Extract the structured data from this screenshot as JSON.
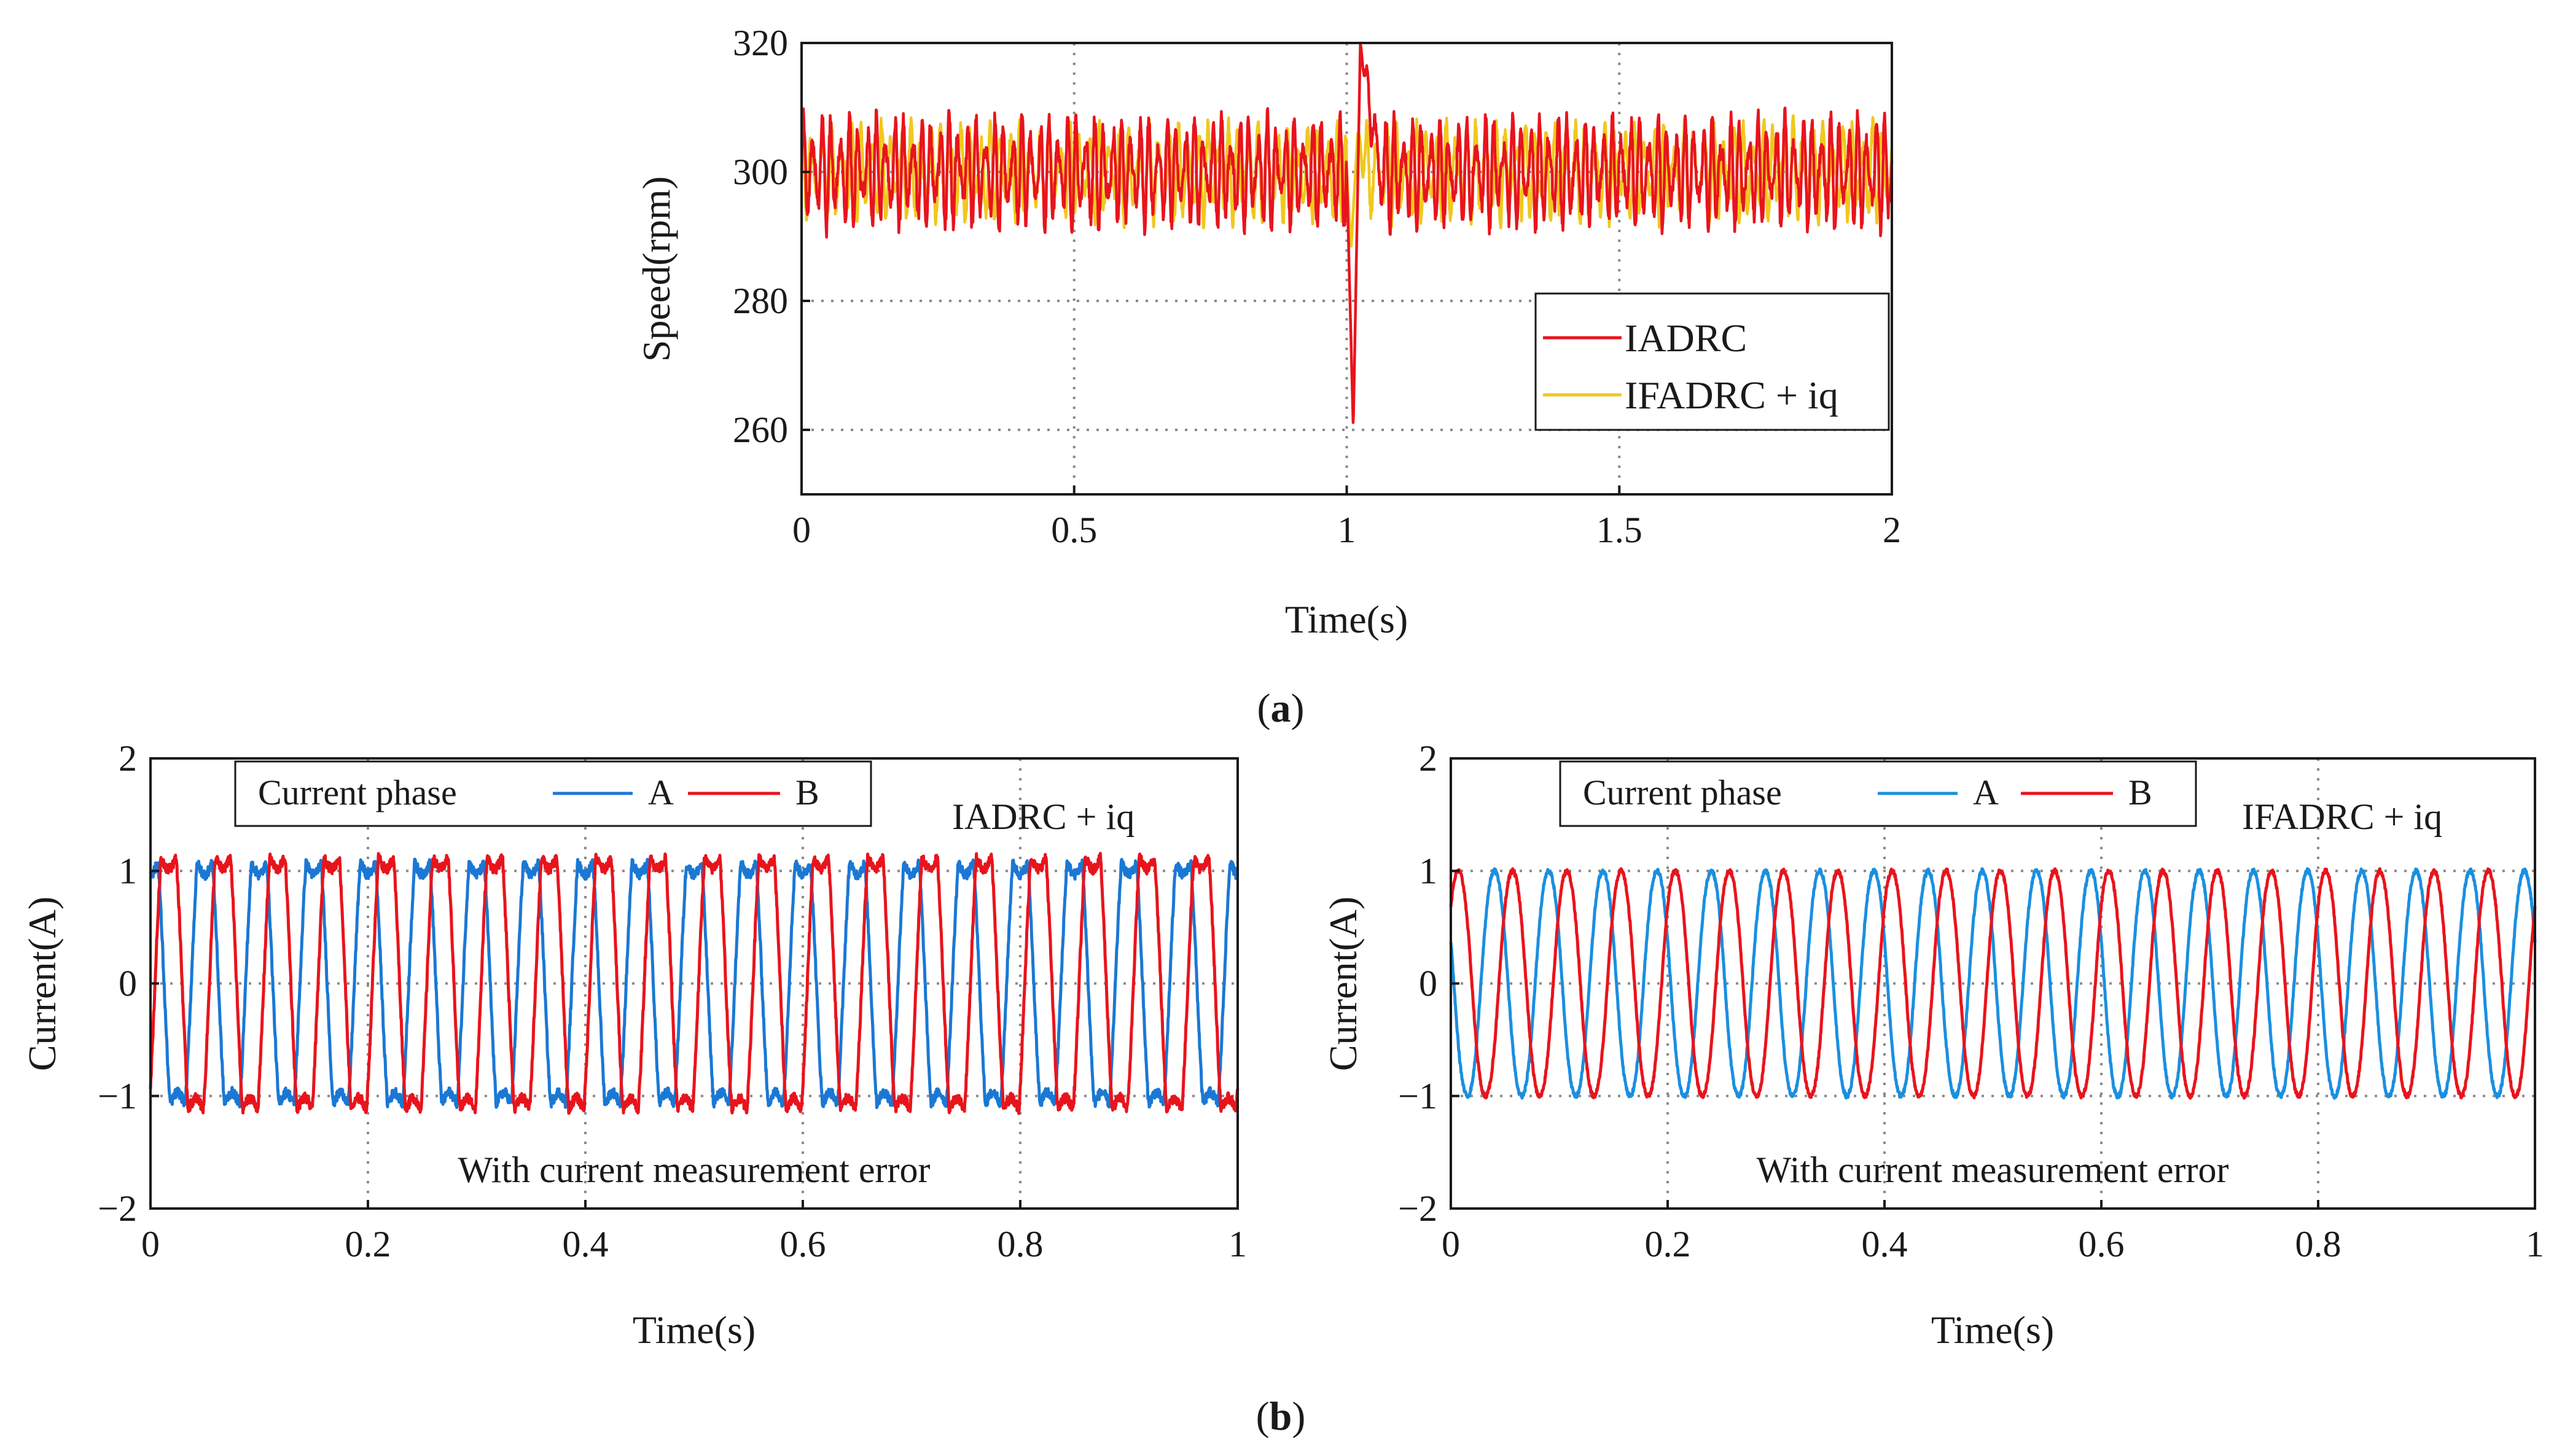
{
  "chart_data": [
    {
      "id": "a",
      "type": "line",
      "panel_label_letter": "a",
      "xlabel": "Time(s)",
      "ylabel": "Speed(rpm)",
      "xlim": [
        0,
        2
      ],
      "ylim": [
        250,
        320
      ],
      "xticks": [
        0,
        0.5,
        1,
        1.5,
        2
      ],
      "xtick_labels": [
        "0",
        "0.5",
        "1",
        "1.5",
        "2"
      ],
      "yticks": [
        260,
        280,
        300,
        320
      ],
      "ytick_labels": [
        "260",
        "280",
        "300",
        "320"
      ],
      "grid": true,
      "legend_position": "lower-right",
      "series": [
        {
          "name": "IADRC",
          "color": "#e8141c",
          "sampling": "oscillation about 300 rpm, amplitude ~8 rpm, ~60 Hz; load disturbance at t=1.0 s dropping to 260 then overshooting to 320 before recovering",
          "baseline": 300,
          "osc_amplitude": 8,
          "osc_frequency_hz": 60,
          "disturbance": {
            "t": 1.0,
            "min": 260,
            "t_min": 1.012,
            "max": 320,
            "t_max": 1.025,
            "t_recover": 1.06
          }
        },
        {
          "name": "IFADRC + iq",
          "color": "#f0c81e",
          "sampling": "oscillation about 300 rpm, amplitude ~7 rpm; small dip to ~288 at t=1.0 s with quick recovery",
          "baseline": 300,
          "osc_amplitude": 7,
          "osc_frequency_hz": 55,
          "disturbance": {
            "t": 1.0,
            "min": 288,
            "t_min": 1.008,
            "max": 306,
            "t_max": 1.02,
            "t_recover": 1.04
          }
        }
      ]
    },
    {
      "id": "b-left",
      "type": "line",
      "panel_label_letter": "b",
      "xlabel": "Time(s)",
      "ylabel": "Current(A)",
      "xlim": [
        0,
        1
      ],
      "ylim": [
        -2,
        2
      ],
      "xticks": [
        0,
        0.2,
        0.4,
        0.6,
        0.8,
        1
      ],
      "xtick_labels": [
        "0",
        "0.2",
        "0.4",
        "0.6",
        "0.8",
        "1"
      ],
      "yticks": [
        -2,
        -1,
        0,
        1,
        2
      ],
      "ytick_labels": [
        "−2",
        "−1",
        "0",
        "1",
        "2"
      ],
      "grid": true,
      "legend_title": "Current phase",
      "legend_position": "top",
      "annotations": [
        "IADRC + iq",
        "With current measurement error"
      ],
      "series": [
        {
          "name": "A",
          "color": "#1a78d4",
          "amplitude": 1.05,
          "frequency_hz": 20,
          "phase_deg": 90,
          "waveform": "trapezoidal-distorted"
        },
        {
          "name": "B",
          "color": "#e8141c",
          "amplitude": 1.1,
          "frequency_hz": 20,
          "phase_deg": -30,
          "waveform": "trapezoidal-distorted"
        }
      ]
    },
    {
      "id": "b-right",
      "type": "line",
      "xlabel": "Time(s)",
      "ylabel": "Current(A)",
      "xlim": [
        0,
        1
      ],
      "ylim": [
        -2,
        2
      ],
      "xticks": [
        0,
        0.2,
        0.4,
        0.6,
        0.8,
        1
      ],
      "xtick_labels": [
        "0",
        "0.2",
        "0.4",
        "0.6",
        "0.8",
        "1"
      ],
      "yticks": [
        -2,
        -1,
        0,
        1,
        2
      ],
      "ytick_labels": [
        "−2",
        "−1",
        "0",
        "1",
        "2"
      ],
      "grid": true,
      "legend_title": "Current phase",
      "legend_position": "top",
      "annotations": [
        "IFADRC + iq",
        "With current measurement error"
      ],
      "series": [
        {
          "name": "A",
          "color": "#1a8fe0",
          "amplitude": 1.03,
          "frequency_hz": 20,
          "phase_deg": 160,
          "waveform": "sinusoidal"
        },
        {
          "name": "B",
          "color": "#e8141c",
          "amplitude": 1.03,
          "frequency_hz": 20,
          "phase_deg": 40,
          "waveform": "sinusoidal"
        }
      ]
    }
  ]
}
